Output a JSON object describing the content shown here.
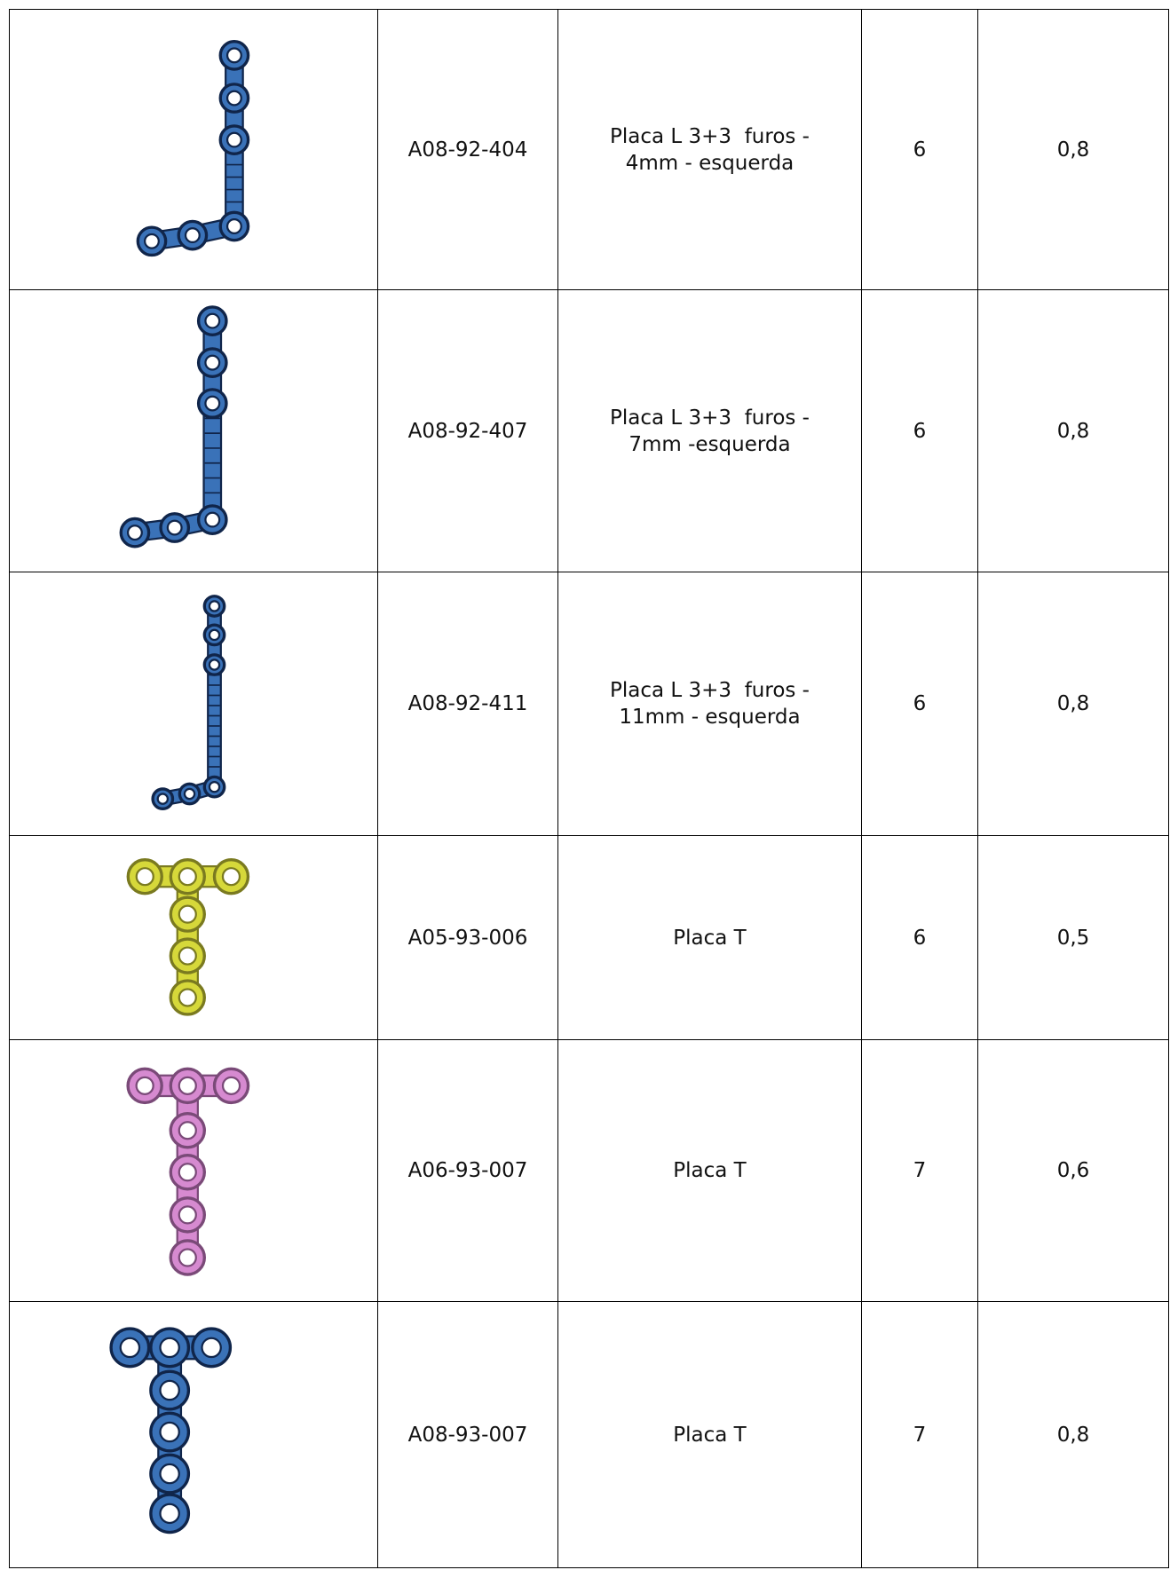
{
  "table": {
    "rows": [
      [
        "A08-92-404",
        "Placa L 3+3  furos - 4mm - esquerda",
        "6",
        "0,8"
      ],
      [
        "A08-92-407",
        "Placa L 3+3  furos - 7mm -esquerda",
        "6",
        "0,8"
      ],
      [
        "A08-92-411",
        "Placa L 3+3  furos - 11mm - esquerda",
        "6",
        "0,8"
      ],
      [
        "A05-93-006",
        "Placa T",
        "6",
        "0,5"
      ],
      [
        "A06-93-007",
        "Placa T",
        "7",
        "0,6"
      ],
      [
        "A08-93-007",
        "Placa T",
        "7",
        "0,8"
      ]
    ]
  }
}
